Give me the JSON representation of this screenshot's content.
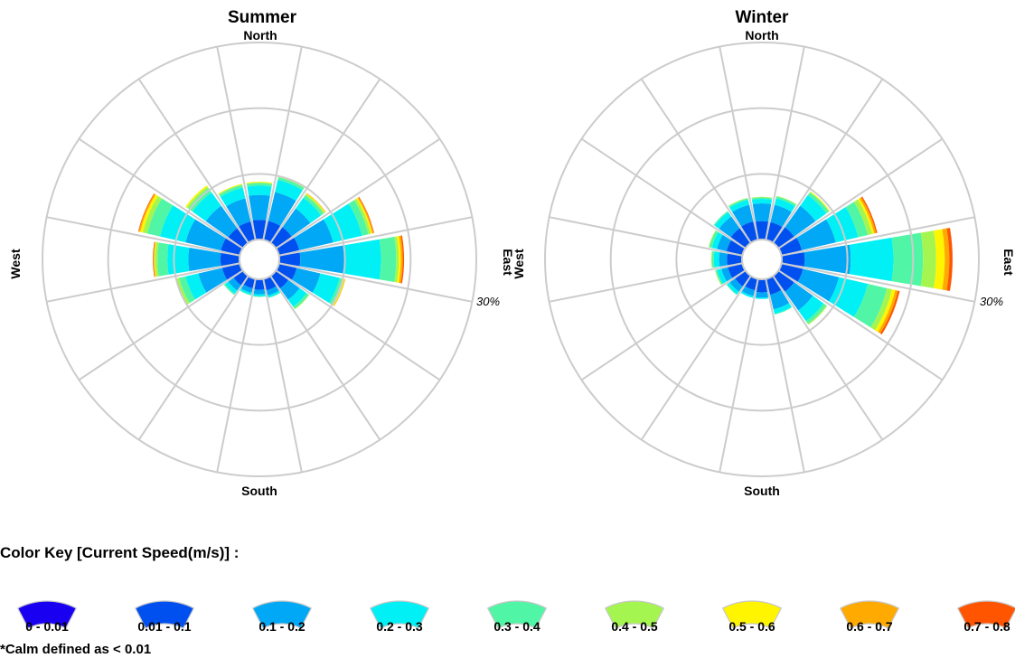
{
  "chart_data": [
    {
      "type": "polar-bar",
      "title": "Summer",
      "direction_labels": {
        "north": "North",
        "south": "South",
        "east": "East",
        "west": "West"
      },
      "ring_label": "30%",
      "r_max_percent": 30,
      "ring_steps_percent": [
        10,
        20,
        30
      ],
      "sectors": 16,
      "directions": [
        "N",
        "NNE",
        "NE",
        "ENE",
        "E",
        "ESE",
        "SE",
        "SSE",
        "S",
        "SSW",
        "SW",
        "WSW",
        "W",
        "WNW",
        "NW",
        "NNW"
      ],
      "bins": [
        "0 - 0.01",
        "0.01 - 0.1",
        "0.1 - 0.2",
        "0.2 - 0.3",
        "0.3 - 0.4",
        "0.4 - 0.5",
        "0.5 - 0.6",
        "0.6 - 0.7",
        "0.7 - 0.8"
      ],
      "cumulative_percent": [
        [
          0,
          3.0,
          6.8,
          8.2,
          8.6,
          8.7,
          8.8,
          8.8,
          8.8
        ],
        [
          0,
          3.0,
          7.5,
          9.4,
          9.8,
          9.9,
          10.0,
          10.0,
          10.0
        ],
        [
          0,
          3.0,
          6.5,
          8.5,
          9.0,
          9.2,
          9.3,
          9.4,
          9.4
        ],
        [
          0,
          3.2,
          8.5,
          13.0,
          14.0,
          14.4,
          14.6,
          14.8,
          14.9
        ],
        [
          0,
          3.2,
          10.0,
          15.5,
          17.8,
          18.2,
          18.5,
          18.8,
          19.0
        ],
        [
          0,
          2.8,
          6.5,
          9.5,
          10.0,
          10.2,
          10.3,
          10.4,
          10.4
        ],
        [
          0,
          2.4,
          4.5,
          5.8,
          6.2,
          6.3,
          6.3,
          6.3,
          6.3
        ],
        [
          0,
          1.8,
          2.6,
          2.9,
          3.0,
          3.0,
          3.0,
          3.0,
          3.0
        ],
        [
          0,
          1.6,
          2.3,
          2.6,
          2.7,
          2.7,
          2.7,
          2.7,
          2.7
        ],
        [
          0,
          1.5,
          2.2,
          2.5,
          2.6,
          2.6,
          2.6,
          2.6,
          2.6
        ],
        [
          0,
          1.8,
          2.8,
          3.4,
          3.6,
          3.6,
          3.6,
          3.6,
          3.6
        ],
        [
          0,
          2.8,
          6.5,
          8.5,
          9.5,
          9.9,
          10.0,
          10.0,
          10.0
        ],
        [
          0,
          2.9,
          7.8,
          11.0,
          12.5,
          12.9,
          13.0,
          13.1,
          13.2
        ],
        [
          0,
          3.0,
          8.5,
          12.5,
          14.5,
          15.2,
          15.6,
          15.8,
          15.9
        ],
        [
          0,
          2.8,
          7.0,
          9.5,
          10.3,
          10.6,
          10.8,
          10.8,
          10.8
        ],
        [
          0,
          2.9,
          6.5,
          8.2,
          8.6,
          8.7,
          8.8,
          8.8,
          8.8
        ]
      ]
    },
    {
      "type": "polar-bar",
      "title": "Winter",
      "direction_labels": {
        "north": "North",
        "south": "South",
        "east": "East",
        "west": "West"
      },
      "ring_label": "30%",
      "r_max_percent": 30,
      "ring_steps_percent": [
        10,
        20,
        30
      ],
      "sectors": 16,
      "directions": [
        "N",
        "NNE",
        "NE",
        "ENE",
        "E",
        "ESE",
        "SE",
        "SSE",
        "S",
        "SSW",
        "SW",
        "WSW",
        "W",
        "WNW",
        "NW",
        "NNW"
      ],
      "bins": [
        "0 - 0.01",
        "0.01 - 0.1",
        "0.1 - 0.2",
        "0.2 - 0.3",
        "0.3 - 0.4",
        "0.4 - 0.5",
        "0.5 - 0.6",
        "0.6 - 0.7",
        "0.7 - 0.8"
      ],
      "cumulative_percent": [
        [
          0,
          2.8,
          5.5,
          6.2,
          6.4,
          6.5,
          6.5,
          6.5,
          6.5
        ],
        [
          0,
          2.8,
          5.5,
          6.5,
          6.8,
          6.9,
          6.9,
          6.9,
          6.9
        ],
        [
          0,
          3.0,
          7.0,
          9.0,
          9.5,
          9.6,
          9.7,
          9.7,
          9.7
        ],
        [
          0,
          3.2,
          8.5,
          12.0,
          13.5,
          14.2,
          14.5,
          14.8,
          15.0
        ],
        [
          0,
          3.5,
          10.5,
          17.0,
          21.5,
          23.5,
          24.8,
          25.5,
          26.0
        ],
        [
          0,
          3.4,
          9.0,
          13.5,
          16.5,
          17.3,
          17.8,
          18.2,
          18.5
        ],
        [
          0,
          3.0,
          6.5,
          8.5,
          9.0,
          9.2,
          9.2,
          9.2,
          9.2
        ],
        [
          0,
          2.5,
          4.8,
          5.5,
          5.6,
          5.6,
          5.6,
          5.6,
          5.6
        ],
        [
          0,
          2.0,
          2.8,
          3.0,
          3.0,
          3.0,
          3.0,
          3.0,
          3.0
        ],
        [
          0,
          1.8,
          2.7,
          3.0,
          3.0,
          3.0,
          3.0,
          3.0,
          3.0
        ],
        [
          0,
          2.0,
          3.0,
          3.5,
          3.6,
          3.6,
          3.6,
          3.6,
          3.6
        ],
        [
          0,
          2.3,
          3.3,
          4.0,
          4.2,
          4.3,
          4.3,
          4.3,
          4.3
        ],
        [
          0,
          2.3,
          3.5,
          4.3,
          4.6,
          4.7,
          4.7,
          4.7,
          4.7
        ],
        [
          0,
          2.5,
          4.0,
          4.8,
          5.2,
          5.3,
          5.3,
          5.3,
          5.3
        ],
        [
          0,
          2.8,
          5.0,
          5.8,
          6.0,
          6.0,
          6.0,
          6.0,
          6.0
        ],
        [
          0,
          2.9,
          5.5,
          6.3,
          6.5,
          6.6,
          6.6,
          6.6,
          6.6
        ]
      ]
    }
  ],
  "legend": {
    "title": "Color Key [Current Speed(m/s)] :",
    "items": [
      {
        "label": "0 - 0.01",
        "color": "#1a00f0"
      },
      {
        "label": "0.01 - 0.1",
        "color": "#0050f0"
      },
      {
        "label": "0.1 - 0.2",
        "color": "#00a8f5"
      },
      {
        "label": "0.2 - 0.3",
        "color": "#00f0f5"
      },
      {
        "label": "0.3 - 0.4",
        "color": "#50f5a5"
      },
      {
        "label": "0.4 - 0.5",
        "color": "#a5f550"
      },
      {
        "label": "0.5 - 0.6",
        "color": "#fff500"
      },
      {
        "label": "0.6 - 0.7",
        "color": "#ffaa00"
      },
      {
        "label": "0.7 - 0.8",
        "color": "#ff5500"
      }
    ],
    "note": "*Calm defined as < 0.01"
  }
}
